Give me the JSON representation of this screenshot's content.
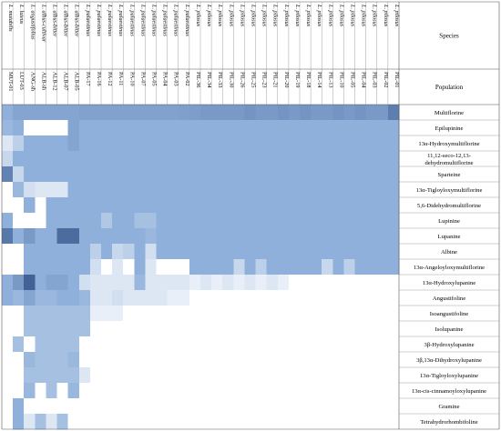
{
  "chart_data": {
    "type": "heatmap",
    "header_species": "Species",
    "header_population": "Population",
    "columns": [
      {
        "species": "L. mutabilis",
        "population": "MUT-01"
      },
      {
        "species": "L. luteus",
        "population": "LUT-03"
      },
      {
        "species": "L. angustifolius",
        "population": "ANG-sh"
      },
      {
        "species": "L. albus-cultivar",
        "population": "ALB-sh"
      },
      {
        "species": "L. albus-bitter",
        "population": "ALB-12"
      },
      {
        "species": "L. albus-bitter",
        "population": "ALB-07"
      },
      {
        "species": "L. albus-bitter",
        "population": "ALB-05"
      },
      {
        "species": "L. palaestinus",
        "population": "PA-17"
      },
      {
        "species": "L. palaestinus",
        "population": "PA-16"
      },
      {
        "species": "L. palaestinus",
        "population": "PA-12"
      },
      {
        "species": "L. palaestinus",
        "population": "PA-11"
      },
      {
        "species": "L. palaestinus",
        "population": "PA-10"
      },
      {
        "species": "L. palaestinus",
        "population": "PA-07"
      },
      {
        "species": "L. palaestinus",
        "population": "PA-05"
      },
      {
        "species": "L. palaestinus",
        "population": "PA-04"
      },
      {
        "species": "L. palaestinus",
        "population": "PA-03"
      },
      {
        "species": "L. palaestinus",
        "population": "PA-02"
      },
      {
        "species": "L. pilosus",
        "population": "PIL-36"
      },
      {
        "species": "L. pilosus",
        "population": "PIL-34"
      },
      {
        "species": "L. pilosus",
        "population": "PIL-33"
      },
      {
        "species": "L. pilosus",
        "population": "PIL-30"
      },
      {
        "species": "L. pilosus",
        "population": "PIL-26"
      },
      {
        "species": "L. pilosus",
        "population": "PIL-25"
      },
      {
        "species": "L. pilosus",
        "population": "PIL-23"
      },
      {
        "species": "L. pilosus",
        "population": "PIL-21"
      },
      {
        "species": "L. pilosus",
        "population": "PIL-20"
      },
      {
        "species": "L. pilosus",
        "population": "PIL-19"
      },
      {
        "species": "L. pilosus",
        "population": "PIL-18"
      },
      {
        "species": "L. pilosus",
        "population": "PIL-14"
      },
      {
        "species": "L. pilosus",
        "population": "PIL-13"
      },
      {
        "species": "L. pilosus",
        "population": "PIL-10"
      },
      {
        "species": "L. pilosus",
        "population": "PIL-05"
      },
      {
        "species": "L. pilosus",
        "population": "PIL-04"
      },
      {
        "species": "L. pilosus",
        "population": "PIL-03"
      },
      {
        "species": "L. pilosus",
        "population": "PIL-02"
      },
      {
        "species": "L. pilosus",
        "population": "PIL-01"
      }
    ],
    "rows": [
      {
        "label": [
          "Multiflorine"
        ],
        "values": [
          0.5,
          0.55,
          0.55,
          0.55,
          0.55,
          0.55,
          0.55,
          0.56,
          0.56,
          0.56,
          0.56,
          0.56,
          0.56,
          0.56,
          0.56,
          0.56,
          0.57,
          0.58,
          0.6,
          0.6,
          0.6,
          0.6,
          0.62,
          0.6,
          0.6,
          0.62,
          0.6,
          0.62,
          0.6,
          0.6,
          0.62,
          0.6,
          0.62,
          0.6,
          0.6,
          0.72
        ]
      },
      {
        "label": [
          "Epilupinine"
        ],
        "values": [
          0.45,
          0.5,
          0.0,
          0.0,
          0.0,
          0.0,
          0.55,
          0.5,
          0.5,
          0.5,
          0.5,
          0.5,
          0.5,
          0.5,
          0.5,
          0.5,
          0.5,
          0.5,
          0.5,
          0.5,
          0.5,
          0.5,
          0.5,
          0.5,
          0.5,
          0.5,
          0.5,
          0.5,
          0.5,
          0.5,
          0.5,
          0.5,
          0.5,
          0.5,
          0.5,
          0.5
        ]
      },
      {
        "label": [
          "13α-Hydroxymultiflorine"
        ],
        "values": [
          0.15,
          0.3,
          0.5,
          0.5,
          0.5,
          0.5,
          0.55,
          0.5,
          0.5,
          0.5,
          0.5,
          0.5,
          0.5,
          0.5,
          0.5,
          0.5,
          0.5,
          0.5,
          0.5,
          0.5,
          0.5,
          0.5,
          0.5,
          0.5,
          0.5,
          0.5,
          0.5,
          0.5,
          0.5,
          0.5,
          0.5,
          0.5,
          0.5,
          0.5,
          0.5,
          0.5
        ]
      },
      {
        "label": [
          "11,12-seco-12,13-",
          "dehydromultiflorine"
        ],
        "values": [
          0.25,
          0.5,
          0.5,
          0.5,
          0.5,
          0.5,
          0.5,
          0.5,
          0.5,
          0.5,
          0.5,
          0.5,
          0.5,
          0.5,
          0.5,
          0.5,
          0.5,
          0.5,
          0.5,
          0.5,
          0.5,
          0.5,
          0.5,
          0.5,
          0.5,
          0.5,
          0.5,
          0.5,
          0.5,
          0.5,
          0.5,
          0.5,
          0.5,
          0.5,
          0.5,
          0.5
        ]
      },
      {
        "label": [
          "Sparteine"
        ],
        "values": [
          0.7,
          0.25,
          0.5,
          0.5,
          0.5,
          0.5,
          0.5,
          0.5,
          0.5,
          0.5,
          0.5,
          0.5,
          0.5,
          0.5,
          0.5,
          0.5,
          0.5,
          0.5,
          0.5,
          0.5,
          0.5,
          0.5,
          0.5,
          0.5,
          0.5,
          0.5,
          0.5,
          0.5,
          0.5,
          0.5,
          0.5,
          0.5,
          0.5,
          0.5,
          0.5,
          0.5
        ]
      },
      {
        "label": [
          "13α-Tigloyloxymultiflorine"
        ],
        "values": [
          0.0,
          0.45,
          0.2,
          0.15,
          0.15,
          0.15,
          0.5,
          0.5,
          0.5,
          0.5,
          0.5,
          0.5,
          0.5,
          0.5,
          0.5,
          0.5,
          0.5,
          0.5,
          0.5,
          0.5,
          0.5,
          0.5,
          0.5,
          0.5,
          0.5,
          0.5,
          0.5,
          0.5,
          0.5,
          0.5,
          0.5,
          0.5,
          0.5,
          0.5,
          0.5,
          0.5
        ]
      },
      {
        "label": [
          "5,6-Didehydromultiflorine"
        ],
        "values": [
          0.0,
          0.0,
          0.5,
          0.0,
          0.5,
          0.5,
          0.5,
          0.5,
          0.5,
          0.5,
          0.5,
          0.5,
          0.5,
          0.5,
          0.5,
          0.5,
          0.5,
          0.5,
          0.5,
          0.5,
          0.5,
          0.5,
          0.5,
          0.5,
          0.5,
          0.5,
          0.5,
          0.5,
          0.5,
          0.5,
          0.5,
          0.5,
          0.5,
          0.5,
          0.5,
          0.5
        ]
      },
      {
        "label": [
          "Lupinine"
        ],
        "values": [
          0.5,
          0.0,
          0.0,
          0.0,
          0.5,
          0.5,
          0.5,
          0.5,
          0.5,
          0.35,
          0.5,
          0.5,
          0.4,
          0.4,
          0.5,
          0.5,
          0.5,
          0.5,
          0.5,
          0.5,
          0.5,
          0.5,
          0.5,
          0.5,
          0.5,
          0.5,
          0.5,
          0.5,
          0.5,
          0.5,
          0.5,
          0.5,
          0.5,
          0.5,
          0.5,
          0.5
        ]
      },
      {
        "label": [
          "Lupanine"
        ],
        "values": [
          0.75,
          0.5,
          0.6,
          0.5,
          0.5,
          0.8,
          0.8,
          0.5,
          0.5,
          0.5,
          0.5,
          0.5,
          0.5,
          0.45,
          0.5,
          0.5,
          0.5,
          0.5,
          0.5,
          0.5,
          0.5,
          0.5,
          0.5,
          0.5,
          0.5,
          0.5,
          0.5,
          0.5,
          0.5,
          0.5,
          0.5,
          0.5,
          0.5,
          0.5,
          0.5,
          0.5
        ]
      },
      {
        "label": [
          "Albine"
        ],
        "values": [
          0.0,
          0.0,
          0.5,
          0.5,
          0.5,
          0.5,
          0.5,
          0.5,
          0.3,
          0.5,
          0.25,
          0.3,
          0.5,
          0.2,
          0.5,
          0.5,
          0.5,
          0.5,
          0.5,
          0.5,
          0.5,
          0.5,
          0.5,
          0.5,
          0.5,
          0.5,
          0.5,
          0.5,
          0.5,
          0.5,
          0.5,
          0.5,
          0.5,
          0.5,
          0.5,
          0.5
        ]
      },
      {
        "label": [
          "13α-Angeloyloxymultiflorine"
        ],
        "values": [
          0.0,
          0.0,
          0.5,
          0.5,
          0.5,
          0.5,
          0.5,
          0.5,
          0.2,
          0.0,
          0.15,
          0.0,
          0.5,
          0.15,
          0.0,
          0.0,
          0.0,
          0.5,
          0.5,
          0.5,
          0.5,
          0.25,
          0.5,
          0.3,
          0.5,
          0.5,
          0.5,
          0.5,
          0.5,
          0.25,
          0.5,
          0.3,
          0.5,
          0.5,
          0.5,
          0.5
        ]
      },
      {
        "label": [
          "13α-Hydroxylupanine"
        ],
        "values": [
          0.5,
          0.6,
          0.85,
          0.5,
          0.55,
          0.55,
          0.5,
          0.2,
          0.15,
          0.15,
          0.15,
          0.15,
          0.45,
          0.15,
          0.15,
          0.15,
          0.15,
          0.1,
          0.15,
          0.1,
          0.15,
          0.1,
          0.15,
          0.1,
          0.15,
          0.1,
          0.0,
          0.0,
          0.0,
          0.0,
          0.0,
          0.0,
          0.0,
          0.0,
          0.0,
          0.0
        ]
      },
      {
        "label": [
          "Angustifoline"
        ],
        "values": [
          0.5,
          0.45,
          0.55,
          0.45,
          0.45,
          0.5,
          0.5,
          0.45,
          0.15,
          0.15,
          0.2,
          0.15,
          0.15,
          0.15,
          0.15,
          0.1,
          0.1,
          0.0,
          0.0,
          0.0,
          0.0,
          0.0,
          0.0,
          0.0,
          0.0,
          0.0,
          0.0,
          0.0,
          0.0,
          0.0,
          0.0,
          0.0,
          0.0,
          0.0,
          0.0,
          0.0
        ]
      },
      {
        "label": [
          "Isoangustifoline"
        ],
        "values": [
          0.0,
          0.0,
          0.4,
          0.4,
          0.4,
          0.4,
          0.4,
          0.4,
          0.1,
          0.1,
          0.1,
          0.0,
          0.0,
          0.0,
          0.0,
          0.0,
          0.0,
          0.0,
          0.0,
          0.0,
          0.0,
          0.0,
          0.0,
          0.0,
          0.0,
          0.0,
          0.0,
          0.0,
          0.0,
          0.0,
          0.0,
          0.0,
          0.0,
          0.0,
          0.0,
          0.0
        ]
      },
      {
        "label": [
          "Isolupanine"
        ],
        "values": [
          0.0,
          0.0,
          0.4,
          0.4,
          0.4,
          0.4,
          0.4,
          0.4,
          0.0,
          0.0,
          0.0,
          0.0,
          0.0,
          0.0,
          0.0,
          0.0,
          0.0,
          0.0,
          0.0,
          0.0,
          0.0,
          0.0,
          0.0,
          0.0,
          0.0,
          0.0,
          0.0,
          0.0,
          0.0,
          0.0,
          0.0,
          0.0,
          0.0,
          0.0,
          0.0,
          0.0
        ]
      },
      {
        "label": [
          "3β-Hydroxylupanine"
        ],
        "values": [
          0.0,
          0.4,
          0.0,
          0.4,
          0.4,
          0.4,
          0.4,
          0.0,
          0.0,
          0.0,
          0.0,
          0.0,
          0.0,
          0.0,
          0.0,
          0.0,
          0.0,
          0.0,
          0.0,
          0.0,
          0.0,
          0.0,
          0.0,
          0.0,
          0.0,
          0.0,
          0.0,
          0.0,
          0.0,
          0.0,
          0.0,
          0.0,
          0.0,
          0.0,
          0.0,
          0.0
        ]
      },
      {
        "label": [
          "3β,13α-Dihydroxylupanine"
        ],
        "values": [
          0.0,
          0.0,
          0.45,
          0.4,
          0.4,
          0.4,
          0.45,
          0.0,
          0.0,
          0.0,
          0.0,
          0.0,
          0.0,
          0.0,
          0.0,
          0.0,
          0.0,
          0.0,
          0.0,
          0.0,
          0.0,
          0.0,
          0.0,
          0.0,
          0.0,
          0.0,
          0.0,
          0.0,
          0.0,
          0.0,
          0.0,
          0.0,
          0.0,
          0.0,
          0.0,
          0.0
        ]
      },
      {
        "label": [
          "13α-Tigloyloxylupanine"
        ],
        "values": [
          0.0,
          0.0,
          0.4,
          0.4,
          0.4,
          0.4,
          0.4,
          0.15,
          0.0,
          0.0,
          0.0,
          0.0,
          0.0,
          0.0,
          0.0,
          0.0,
          0.0,
          0.0,
          0.0,
          0.0,
          0.0,
          0.0,
          0.0,
          0.0,
          0.0,
          0.0,
          0.0,
          0.0,
          0.0,
          0.0,
          0.0,
          0.0,
          0.0,
          0.0,
          0.0,
          0.0
        ]
      },
      {
        "label": [
          "13α-cis-cinnamoyloxylupanine"
        ],
        "values": [
          0.0,
          0.0,
          0.45,
          0.0,
          0.4,
          0.0,
          0.45,
          0.0,
          0.0,
          0.0,
          0.0,
          0.0,
          0.0,
          0.0,
          0.0,
          0.0,
          0.0,
          0.0,
          0.0,
          0.0,
          0.0,
          0.0,
          0.0,
          0.0,
          0.0,
          0.0,
          0.0,
          0.0,
          0.0,
          0.0,
          0.0,
          0.0,
          0.0,
          0.0,
          0.0,
          0.0
        ]
      },
      {
        "label": [
          "Gramine"
        ],
        "values": [
          0.0,
          0.5,
          0.0,
          0.0,
          0.0,
          0.0,
          0.0,
          0.0,
          0.0,
          0.0,
          0.0,
          0.0,
          0.0,
          0.0,
          0.0,
          0.0,
          0.0,
          0.0,
          0.0,
          0.0,
          0.0,
          0.0,
          0.0,
          0.0,
          0.0,
          0.0,
          0.0,
          0.0,
          0.0,
          0.0,
          0.0,
          0.0,
          0.0,
          0.0,
          0.0,
          0.0
        ]
      },
      {
        "label": [
          "Tetrahydrorhombifoline"
        ],
        "values": [
          0.0,
          0.5,
          0.15,
          0.4,
          0.15,
          0.4,
          0.0,
          0.0,
          0.0,
          0.0,
          0.0,
          0.0,
          0.0,
          0.0,
          0.0,
          0.0,
          0.0,
          0.0,
          0.0,
          0.0,
          0.0,
          0.0,
          0.0,
          0.0,
          0.0,
          0.0,
          0.0,
          0.0,
          0.0,
          0.0,
          0.0,
          0.0,
          0.0,
          0.0,
          0.0,
          0.0
        ]
      }
    ],
    "value_range": [
      0,
      1
    ],
    "colors": {
      "low": "#ffffff",
      "mid": "#8fb0da",
      "high": "#1f3f7a",
      "grid": "#555555"
    }
  }
}
